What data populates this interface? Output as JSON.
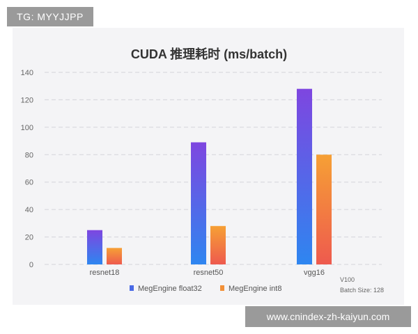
{
  "badge": {
    "text": "TG: MYYJJPP"
  },
  "watermark": {
    "text": "www.cnindex-zh-kaiyun.com"
  },
  "chart_data": {
    "type": "bar",
    "title": "CUDA 推理耗时 (ms/batch)",
    "categories": [
      "resnet18",
      "resnet50",
      "vgg16"
    ],
    "series": [
      {
        "name": "MegEngine float32",
        "values": [
          25,
          89,
          128
        ],
        "color_top": "#7e46e0",
        "color_bottom": "#2e86f0",
        "legend_color": "#4a6ae6"
      },
      {
        "name": "MegEngine int8",
        "values": [
          12,
          28,
          80
        ],
        "color_top": "#f6a035",
        "color_bottom": "#ee5a4e",
        "legend_color": "#f29038"
      }
    ],
    "ylim": [
      0,
      140
    ],
    "yticks": [
      "0",
      "20",
      "40",
      "60",
      "80",
      "100",
      "120",
      "140"
    ],
    "grid": true,
    "legend_position": "bottom",
    "annotations": [
      "V100",
      "Batch Size: 128"
    ]
  }
}
